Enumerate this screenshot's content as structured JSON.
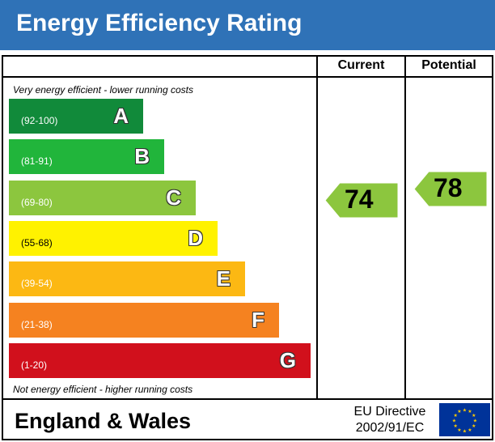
{
  "header": {
    "title": "Energy Efficiency Rating"
  },
  "columns": {
    "current": "Current",
    "potential": "Potential"
  },
  "notes": {
    "top": "Very energy efficient - lower running costs",
    "bottom": "Not energy efficient - higher running costs"
  },
  "chart_data": {
    "type": "bar",
    "title": "Energy Efficiency Rating",
    "bands": [
      {
        "letter": "A",
        "range": "(92-100)",
        "color": "#008054"
      },
      {
        "letter": "B",
        "range": "(81-91)",
        "color": "#19b459"
      },
      {
        "letter": "C",
        "range": "(69-80)",
        "color": "#8dce46"
      },
      {
        "letter": "D",
        "range": "(55-68)",
        "color": "#ffd500"
      },
      {
        "letter": "E",
        "range": "(39-54)",
        "color": "#fcaa65"
      },
      {
        "letter": "F",
        "range": "(21-38)",
        "color": "#ef8023"
      },
      {
        "letter": "G",
        "range": "(1-20)",
        "color": "#e9153b"
      }
    ],
    "current": 74,
    "potential": 78,
    "rating_color": "#8dce46"
  },
  "footer": {
    "region": "England & Wales",
    "directive_line1": "EU Directive",
    "directive_line2": "2002/91/EC"
  },
  "colors": {
    "header_bg": "#2f72b7",
    "eu_flag_bg": "#003399",
    "eu_star": "#ffcc00",
    "band_A": "#118a3a",
    "band_B": "#21b53b",
    "band_C": "#8cc63e",
    "band_D": "#fff200",
    "band_E": "#fcb813",
    "band_F": "#f58220",
    "band_G": "#d1101c"
  }
}
